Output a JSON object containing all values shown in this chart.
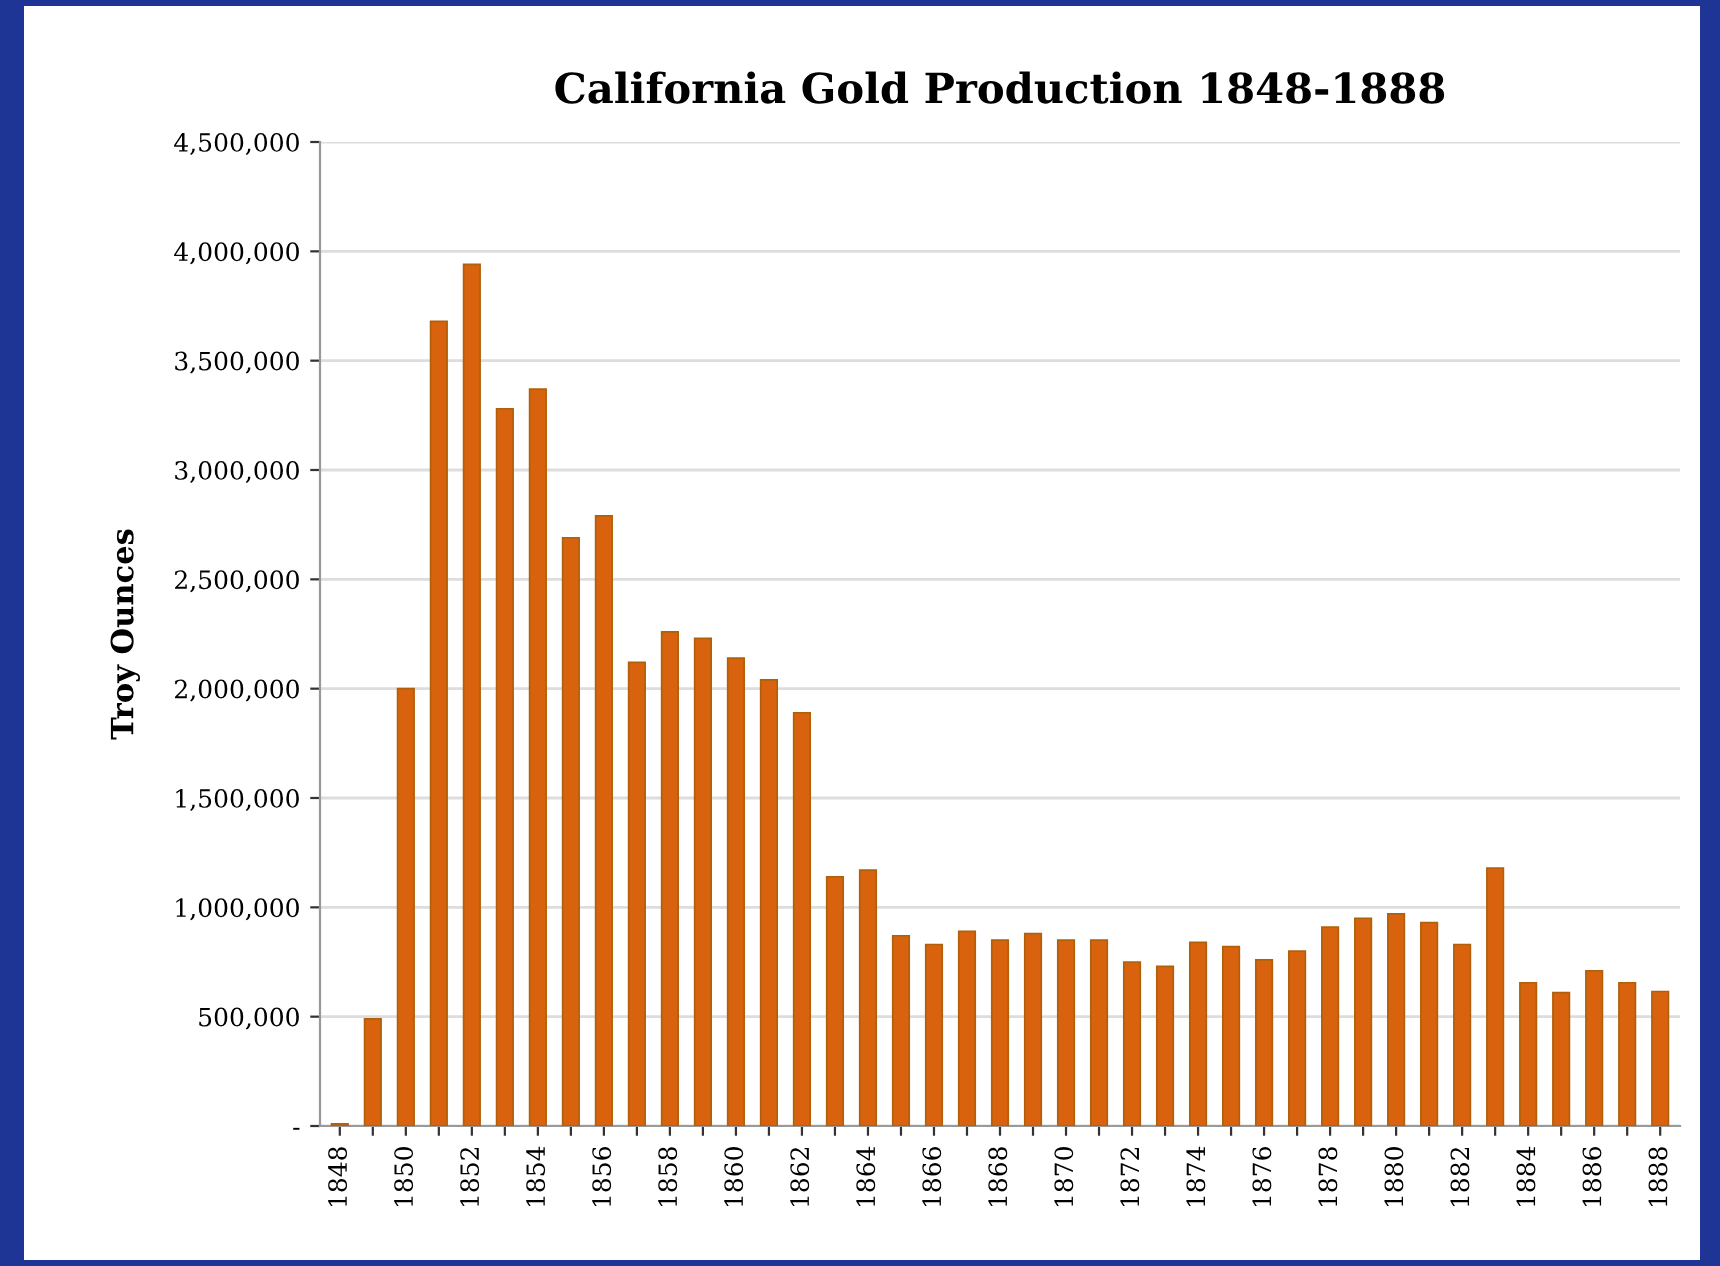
{
  "chart_data": {
    "type": "bar",
    "title": "California Gold Production 1848-1888",
    "ylabel": "Troy Ounces",
    "categories": [
      "1848",
      null,
      "1850",
      null,
      "1852",
      null,
      "1854",
      null,
      "1856",
      null,
      "1858",
      null,
      "1860",
      null,
      "1862",
      null,
      "1864",
      null,
      "1866",
      null,
      "1868",
      null,
      "1870",
      null,
      "1872",
      null,
      "1874",
      null,
      "1876",
      null,
      "1878",
      null,
      "1880",
      null,
      "1882",
      null,
      "1884",
      null,
      "1886",
      null,
      "1888"
    ],
    "values": [
      10000,
      490000,
      2000000,
      3680000,
      3940000,
      3280000,
      3370000,
      2690000,
      2790000,
      2120000,
      2260000,
      2230000,
      2140000,
      2040000,
      1890000,
      1140000,
      1170000,
      870000,
      830000,
      890000,
      850000,
      880000,
      850000,
      850000,
      750000,
      730000,
      840000,
      820000,
      760000,
      800000,
      910000,
      950000,
      970000,
      930000,
      830000,
      1180000,
      655000,
      610000,
      710000,
      655000,
      615000
    ],
    "color": "#d9620f",
    "ylim": [
      0,
      4500000
    ],
    "yticks": [
      {
        "value": 0,
        "label": "-"
      },
      {
        "value": 500000,
        "label": "500,000"
      },
      {
        "value": 1000000,
        "label": "1,000,000"
      },
      {
        "value": 1500000,
        "label": "1,500,000"
      },
      {
        "value": 2000000,
        "label": "2,000,000"
      },
      {
        "value": 2500000,
        "label": "2,500,000"
      },
      {
        "value": 3000000,
        "label": "3,000,000"
      },
      {
        "value": 3500000,
        "label": "3,500,000"
      },
      {
        "value": 4000000,
        "label": "4,000,000"
      },
      {
        "value": 4500000,
        "label": "4,500,000"
      }
    ],
    "grid": "y"
  }
}
